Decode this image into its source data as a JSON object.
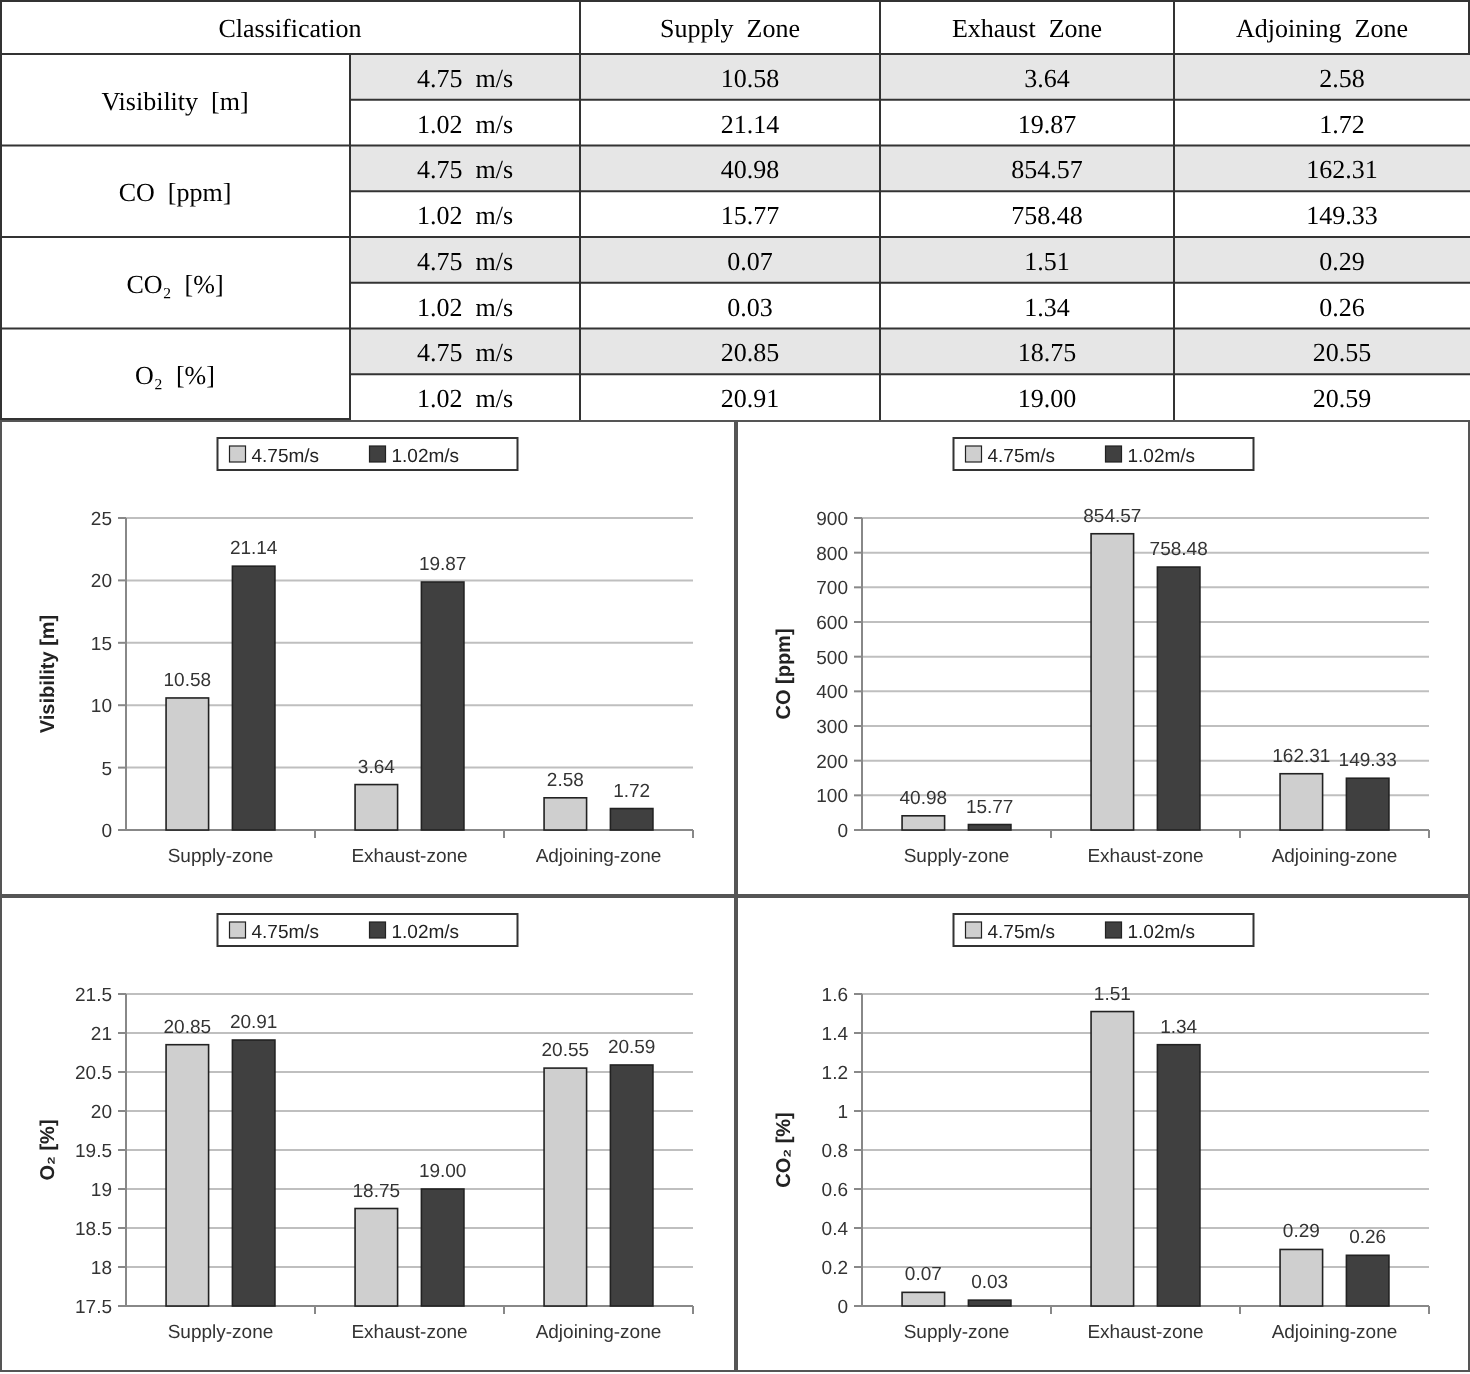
{
  "chart_data": [
    {
      "type": "other",
      "title": "Classification",
      "categories": [
        "Supply  Zone",
        "Exhaust  Zone",
        "Adjoining  Zone"
      ],
      "annotations": [
        "Visibility  [m]",
        "CO  [ppm]",
        "CO₂  [%]",
        "O₂  [%]"
      ],
      "y_categories": [
        "4.75  m/s",
        "1.02  m/s",
        "4.75  m/s",
        "1.02  m/s",
        "4.75  m/s",
        "1.02  m/s",
        "4.75  m/s",
        "1.02  m/s"
      ],
      "cell_labels": [
        [
          "10.58",
          "3.64",
          "2.58"
        ],
        [
          "21.14",
          "19.87",
          "1.72"
        ],
        [
          "40.98",
          "854.57",
          "162.31"
        ],
        [
          "15.77",
          "758.48",
          "149.33"
        ],
        [
          "0.07",
          "1.51",
          "0.29"
        ],
        [
          "0.03",
          "1.34",
          "0.26"
        ],
        [
          "20.85",
          "18.75",
          "20.55"
        ],
        [
          "20.91",
          "19.00",
          "20.59"
        ]
      ]
    },
    {
      "type": "bar",
      "ylabel": "Visibility [m]",
      "categories": [
        "Supply-zone",
        "Exhaust-zone",
        "Adjoining-zone"
      ],
      "ylim": [
        0,
        25
      ],
      "yticks": [
        0,
        5,
        10,
        15,
        20,
        25
      ],
      "grid": "y",
      "legend": "top",
      "series": [
        {
          "name": "4.75m/s",
          "color": "#cfcfcf",
          "values": [
            10.58,
            3.64,
            2.58
          ],
          "value_labels": [
            "10.58",
            "3.64",
            "2.58"
          ]
        },
        {
          "name": "1.02m/s",
          "color": "#404040",
          "values": [
            21.14,
            19.87,
            1.72
          ],
          "value_labels": [
            "21.14",
            "19.87",
            "1.72"
          ]
        }
      ]
    },
    {
      "type": "bar",
      "ylabel": "CO [ppm]",
      "categories": [
        "Supply-zone",
        "Exhaust-zone",
        "Adjoining-zone"
      ],
      "ylim": [
        0,
        900
      ],
      "yticks": [
        0,
        100,
        200,
        300,
        400,
        500,
        600,
        700,
        800,
        900
      ],
      "grid": "y",
      "legend": "top",
      "series": [
        {
          "name": "4.75m/s",
          "color": "#cfcfcf",
          "values": [
            40.98,
            854.57,
            162.31
          ],
          "value_labels": [
            "40.98",
            "854.57",
            "162.31"
          ]
        },
        {
          "name": "1.02m/s",
          "color": "#404040",
          "values": [
            15.77,
            758.48,
            149.33
          ],
          "value_labels": [
            "15.77",
            "758.48",
            "149.33"
          ]
        }
      ]
    },
    {
      "type": "bar",
      "ylabel": "O₂ [%]",
      "categories": [
        "Supply-zone",
        "Exhaust-zone",
        "Adjoining-zone"
      ],
      "ylim": [
        17.5,
        21.5
      ],
      "yticks": [
        17.5,
        18,
        18.5,
        19,
        19.5,
        20,
        20.5,
        21,
        21.5
      ],
      "grid": "y",
      "legend": "top",
      "series": [
        {
          "name": "4.75m/s",
          "color": "#cfcfcf",
          "values": [
            20.85,
            18.75,
            20.55
          ],
          "value_labels": [
            "20.85",
            "18.75",
            "20.55"
          ]
        },
        {
          "name": "1.02m/s",
          "color": "#404040",
          "values": [
            20.91,
            19.0,
            20.59
          ],
          "value_labels": [
            "20.91",
            "19.00",
            "20.59"
          ]
        }
      ]
    },
    {
      "type": "bar",
      "ylabel": "CO₂ [%]",
      "categories": [
        "Supply-zone",
        "Exhaust-zone",
        "Adjoining-zone"
      ],
      "ylim": [
        0,
        1.6
      ],
      "yticks": [
        0,
        0.2,
        0.4,
        0.6,
        0.8,
        1,
        1.2,
        1.4,
        1.6
      ],
      "grid": "y",
      "legend": "top",
      "series": [
        {
          "name": "4.75m/s",
          "color": "#cfcfcf",
          "values": [
            0.07,
            1.51,
            0.29
          ],
          "value_labels": [
            "0.07",
            "1.51",
            "0.29"
          ]
        },
        {
          "name": "1.02m/s",
          "color": "#404040",
          "values": [
            0.03,
            1.34,
            0.26
          ],
          "value_labels": [
            "0.03",
            "1.34",
            "0.26"
          ]
        }
      ]
    }
  ]
}
